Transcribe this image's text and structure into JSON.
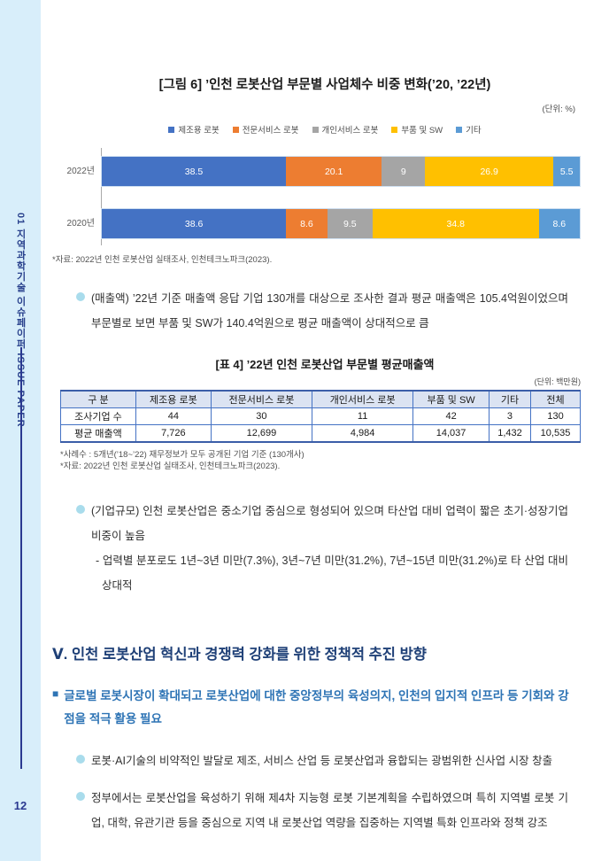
{
  "sidebar": {
    "vertical_label": "01 지역과학기술 이슈페이퍼 ISSUE PAPER",
    "page_number": "12"
  },
  "figure": {
    "title": "[그림 6] ’인천 로봇산업 부문별 사업체수 비중 변화(’20, ’22년)",
    "unit": "(단위: %)",
    "source": "*자료: 2022년 인천 로봇산업 실태조사, 인천테크노파크(2023)."
  },
  "chart_data": {
    "type": "bar",
    "orientation": "horizontal-stacked",
    "categories": [
      "2022년",
      "2020년"
    ],
    "series": [
      {
        "name": "제조용 로봇",
        "color": "#4472c4",
        "values": [
          38.5,
          38.6
        ]
      },
      {
        "name": "전문서비스 로봇",
        "color": "#ed7d31",
        "values": [
          20.1,
          8.6
        ]
      },
      {
        "name": "개인서비스 로봇",
        "color": "#a5a5a5",
        "values": [
          9,
          9.5
        ]
      },
      {
        "name": "부품 및 SW",
        "color": "#ffc000",
        "values": [
          26.9,
          34.8
        ]
      },
      {
        "name": "기타",
        "color": "#5b9bd5",
        "values": [
          5.5,
          8.6
        ]
      }
    ],
    "xlim": [
      0,
      100
    ],
    "legend_position": "top",
    "value_labels": true,
    "value_label_color": "#ffffff"
  },
  "bullets": {
    "sales": "(매출액) ’22년 기준 매출액 응답 기업 130개를 대상으로 조사한 결과 평균 매출액은 105.4억원이었으며 부문별로 보면 부품 및 SW가 140.4억원으로 평균 매출액이 상대적으로 큼",
    "company_size": "(기업규모) 인천 로봇산업은 중소기업 중심으로 형성되어 있으며 타산업 대비 업력이 짧은 초기·성장기업 비중이 높음",
    "company_size_sub": "- 업력별 분포로도 1년~3년 미만(7.3%), 3년~7년 미만(31.2%), 7년~15년 미만(31.2%)로 타 산업 대비 상대적",
    "robot_ai": "로봇·AI기술의 비약적인 발달로 제조, 서비스 산업 등 로봇산업과 융합되는 광범위한 신사업 시장 창출",
    "government": "정부에서는 로봇산업을 육성하기 위해 제4차 지능형 로봇 기본계획을 수립하였으며 특히 지역별 로봇 기업, 대학, 유관기관 등을 중심으로 지역 내 로봇산업 역량을 집중하는 지역별 특화 인프라와 정책 강조"
  },
  "table": {
    "title": "[표 4] ’22년 인천 로봇산업 부문별 평균매출액",
    "unit": "(단위: 백만원)",
    "headers": [
      "구 분",
      "제조용 로봇",
      "전문서비스 로봇",
      "개인서비스 로봇",
      "부품 및 SW",
      "기타",
      "전체"
    ],
    "rows": [
      [
        "조사기업 수",
        "44",
        "30",
        "11",
        "42",
        "3",
        "130"
      ],
      [
        "평균 매출액",
        "7,726",
        "12,699",
        "4,984",
        "14,037",
        "1,432",
        "10,535"
      ]
    ],
    "notes": [
      "*사례수 : 5개년(’18~’22) 재무정보가 모두 공개된 기업 기준 (130개사)",
      "*자료: 2022년 인천 로봇산업 실태조사, 인천테크노파크(2023)."
    ]
  },
  "section": {
    "title": "Ⅴ. 인천 로봇산업 혁신과 경쟁력 강화를 위한 정책적 추진 방향",
    "subsection_marker": "■",
    "subsection": "글로벌 로봇시장이 확대되고 로봇산업에 대한 중앙정부의 육성의지, 인천의 입지적 인프라 등 기회와 강점을 적극 활용 필요"
  }
}
